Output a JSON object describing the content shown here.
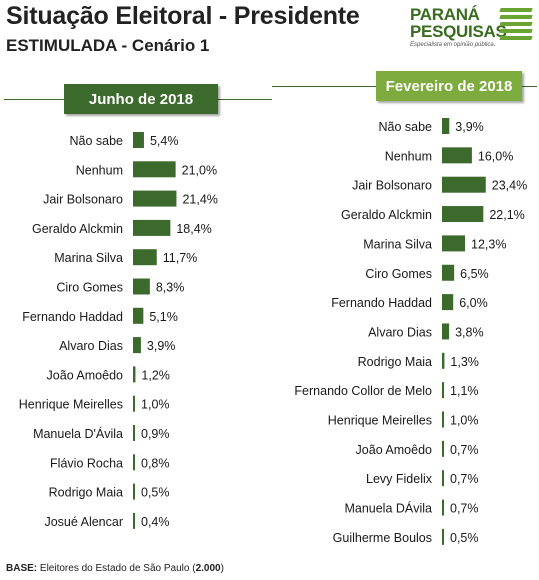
{
  "header": {
    "title": "Situação Eleitoral - Presidente",
    "subtitle": "ESTIMULADA - Cenário 1"
  },
  "logo": {
    "line1": "PARANÁ",
    "line2": "PESQUISAS",
    "slogan": "Especialista em opinião pública."
  },
  "footer": {
    "label": "BASE:",
    "text": "Eleitores do Estado de São Paulo (",
    "count": "2.000",
    "close": ")"
  },
  "colors": {
    "bar": "#3c6a2c",
    "header_june": "#3c6a2c",
    "header_feb": "#7dab3d"
  },
  "chart_data": [
    {
      "type": "bar",
      "orientation": "horizontal",
      "title": "Junho de 2018",
      "unit": "%",
      "categories": [
        "Não sabe",
        "Nenhum",
        "Jair Bolsonaro",
        "Geraldo Alckmin",
        "Marina Silva",
        "Ciro Gomes",
        "Fernando Haddad",
        "Alvaro Dias",
        "João Amoêdo",
        "Henrique Meirelles",
        "Manuela D'Ávila",
        "Flávio Rocha",
        "Rodrigo Maia",
        "Josué Alencar"
      ],
      "values": [
        5.4,
        21.0,
        21.4,
        18.4,
        11.7,
        8.3,
        5.1,
        3.9,
        1.2,
        1.0,
        0.9,
        0.8,
        0.5,
        0.4
      ],
      "labels": [
        "5,4%",
        "21,0%",
        "21,4%",
        "18,4%",
        "11,7%",
        "8,3%",
        "5,1%",
        "3,9%",
        "1,2%",
        "1,0%",
        "0,9%",
        "0,8%",
        "0,5%",
        "0,4%"
      ]
    },
    {
      "type": "bar",
      "orientation": "horizontal",
      "title": "Fevereiro de 2018",
      "unit": "%",
      "categories": [
        "Não sabe",
        "Nenhum",
        "Jair Bolsonaro",
        "Geraldo Alckmin",
        "Marina Silva",
        "Ciro Gomes",
        "Fernando Haddad",
        "Alvaro Dias",
        "Rodrigo Maia",
        "Fernando Collor de Melo",
        "Henrique Meirelles",
        "João Amoêdo",
        "Levy Fidelix",
        "Manuela DÁvila",
        "Guilherme Boulos"
      ],
      "values": [
        3.9,
        16.0,
        23.4,
        22.1,
        12.3,
        6.5,
        6.0,
        3.8,
        1.3,
        1.1,
        1.0,
        0.7,
        0.7,
        0.7,
        0.5
      ],
      "labels": [
        "3,9%",
        "16,0%",
        "23,4%",
        "22,1%",
        "12,3%",
        "6,5%",
        "6,0%",
        "3,8%",
        "1,3%",
        "1,1%",
        "1,0%",
        "0,7%",
        "0,7%",
        "0,7%",
        "0,5%"
      ]
    }
  ]
}
